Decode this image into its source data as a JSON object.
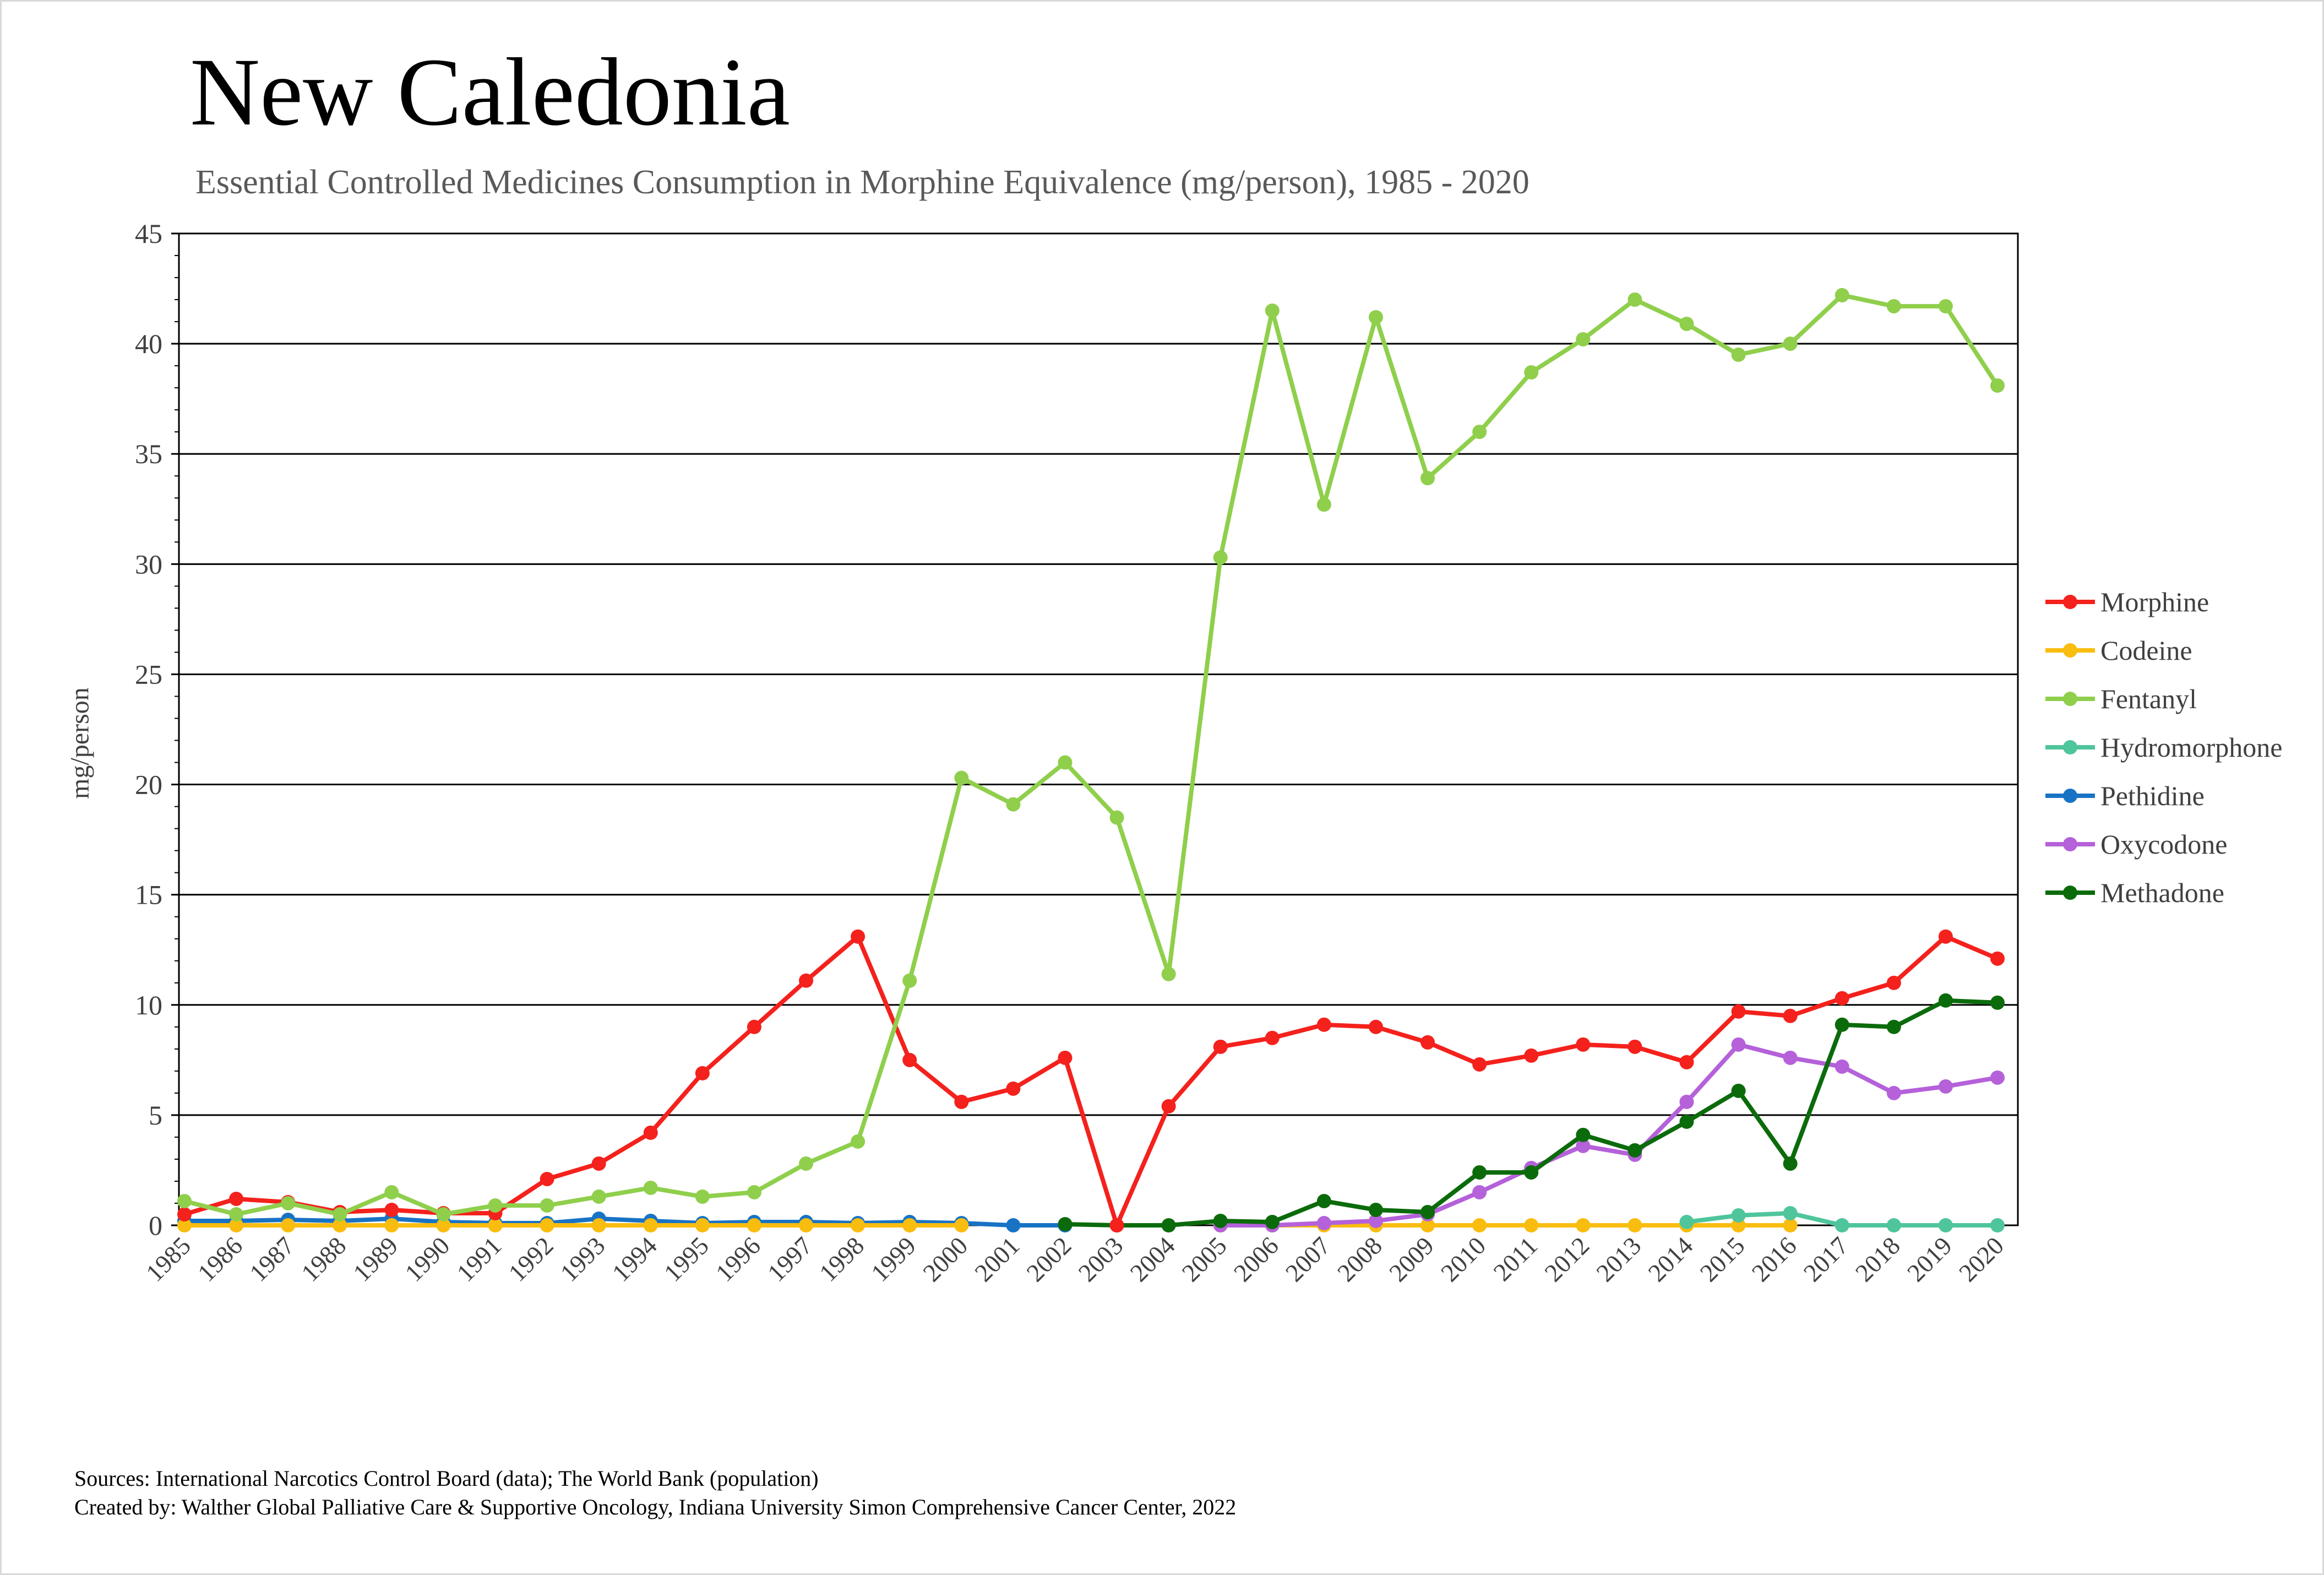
{
  "header": {
    "title": "New Caledonia",
    "subtitle": "Essential Controlled Medicines Consumption in Morphine Equivalence (mg/person), 1985 - 2020"
  },
  "footer": {
    "sources": "Sources: International Narcotics Control Board (data); The World Bank (population)",
    "created_by": "Created by: Walther Global Palliative Care & Supportive Oncology, Indiana University Simon Comprehensive Cancer Center, 2022"
  },
  "chart_data": {
    "type": "line",
    "title": "New Caledonia",
    "subtitle": "Essential Controlled Medicines Consumption in Morphine Equivalence (mg/person), 1985 - 2020",
    "xlabel": "",
    "ylabel": "mg/person",
    "ylim": [
      0,
      45
    ],
    "yticks": [
      0,
      5,
      10,
      15,
      20,
      25,
      30,
      35,
      40,
      45
    ],
    "grid": "horizontal",
    "legend_position": "right",
    "x": [
      "1985",
      "1986",
      "1987",
      "1988",
      "1989",
      "1990",
      "1991",
      "1992",
      "1993",
      "1994",
      "1995",
      "1996",
      "1997",
      "1998",
      "1999",
      "2000",
      "2001",
      "2002",
      "2003",
      "2004",
      "2005",
      "2006",
      "2007",
      "2008",
      "2009",
      "2010",
      "2011",
      "2012",
      "2013",
      "2014",
      "2015",
      "2016",
      "2017",
      "2018",
      "2019",
      "2020"
    ],
    "series": [
      {
        "name": "Morphine",
        "color": "#f4211c",
        "values": [
          0.5,
          1.2,
          1.05,
          0.6,
          0.7,
          0.55,
          0.55,
          2.1,
          2.8,
          4.2,
          6.9,
          9.0,
          11.1,
          13.1,
          7.5,
          5.6,
          6.2,
          7.6,
          0.0,
          5.4,
          8.1,
          8.5,
          9.1,
          9.0,
          8.3,
          7.3,
          7.7,
          8.2,
          8.1,
          7.4,
          9.7,
          9.5,
          10.3,
          11.0,
          13.1,
          12.1
        ]
      },
      {
        "name": "Codeine",
        "color": "#f9bd0f",
        "values": [
          0.0,
          0.0,
          0.0,
          0.0,
          0.0,
          0.0,
          0.0,
          0.0,
          0.0,
          0.0,
          0.0,
          0.0,
          0.0,
          0.0,
          0.0,
          0.0,
          null,
          null,
          null,
          null,
          0.0,
          0.0,
          0.0,
          0.0,
          0.0,
          0.0,
          0.0,
          0.0,
          0.0,
          0.0,
          0.0,
          0.0,
          null,
          null,
          null,
          null
        ]
      },
      {
        "name": "Fentanyl",
        "color": "#8fcf4c",
        "values": [
          1.1,
          0.5,
          1.0,
          0.5,
          1.5,
          0.5,
          0.9,
          0.9,
          1.3,
          1.7,
          1.3,
          1.5,
          2.8,
          3.8,
          11.1,
          20.3,
          19.1,
          21.0,
          18.5,
          11.4,
          30.3,
          41.5,
          32.7,
          41.2,
          33.9,
          36.0,
          38.7,
          40.2,
          42.0,
          40.9,
          39.5,
          40.0,
          42.2,
          41.7,
          41.7,
          38.1
        ]
      },
      {
        "name": "Hydromorphone",
        "color": "#4fc59b",
        "values": [
          null,
          null,
          null,
          null,
          null,
          null,
          null,
          null,
          null,
          null,
          null,
          null,
          null,
          null,
          null,
          null,
          null,
          null,
          null,
          null,
          null,
          null,
          null,
          null,
          null,
          null,
          null,
          null,
          null,
          0.15,
          0.45,
          0.55,
          0.0,
          0.0,
          0.0,
          0.0
        ]
      },
      {
        "name": "Pethidine",
        "color": "#1873c5",
        "values": [
          0.2,
          0.2,
          0.25,
          0.2,
          0.3,
          0.15,
          0.1,
          0.1,
          0.3,
          0.2,
          0.1,
          0.15,
          0.15,
          0.1,
          0.15,
          0.1,
          0.0,
          0.0,
          null,
          null,
          null,
          null,
          null,
          null,
          null,
          null,
          null,
          null,
          null,
          null,
          null,
          null,
          null,
          null,
          null,
          null
        ]
      },
      {
        "name": "Oxycodone",
        "color": "#b561da",
        "values": [
          null,
          null,
          null,
          null,
          null,
          null,
          null,
          null,
          null,
          null,
          null,
          null,
          null,
          null,
          null,
          null,
          null,
          null,
          null,
          null,
          0.0,
          0.0,
          0.1,
          0.2,
          0.5,
          1.5,
          2.6,
          3.6,
          3.2,
          5.6,
          8.2,
          7.6,
          7.2,
          6.0,
          6.3,
          6.7
        ]
      },
      {
        "name": "Methadone",
        "color": "#0b6b0b",
        "values": [
          null,
          null,
          null,
          null,
          null,
          null,
          null,
          null,
          null,
          null,
          null,
          null,
          null,
          null,
          null,
          null,
          null,
          0.05,
          0.0,
          0.0,
          0.2,
          0.15,
          1.1,
          0.7,
          0.6,
          2.4,
          2.4,
          4.1,
          3.4,
          4.7,
          6.1,
          2.8,
          9.1,
          9.0,
          10.2,
          10.1
        ]
      }
    ]
  }
}
